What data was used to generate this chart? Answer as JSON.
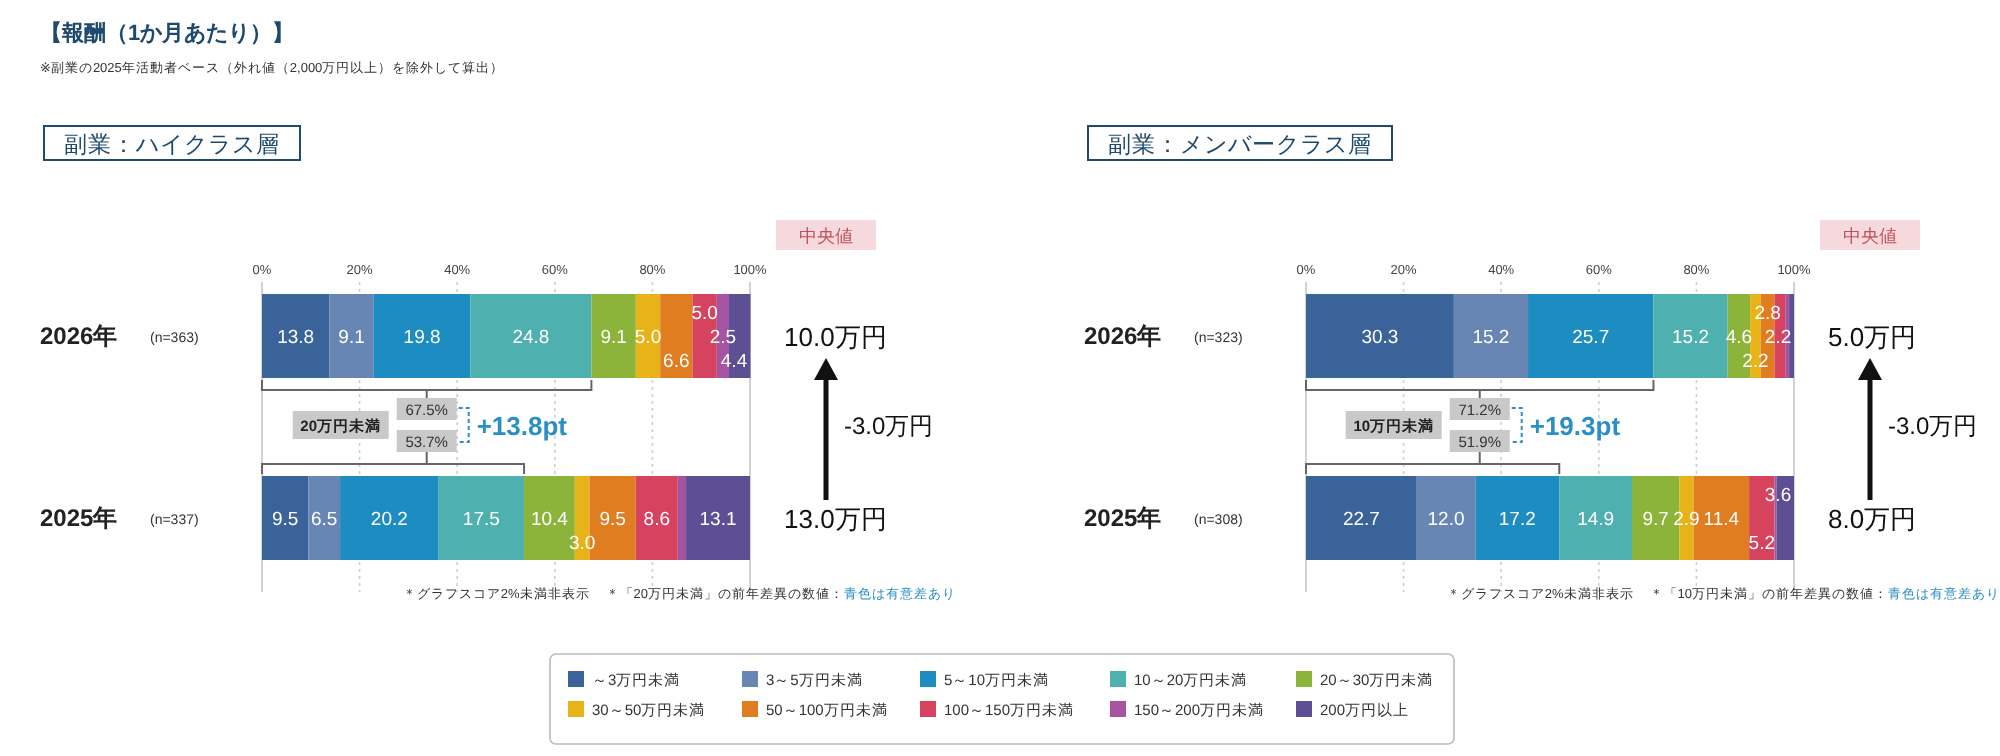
{
  "chart_data": [
    {
      "type": "bar",
      "orientation": "horizontal",
      "stacked": true,
      "title": "副業：ハイクラス層",
      "categories": [
        "2026年",
        "2025年"
      ],
      "xlim": [
        0,
        100
      ],
      "xticks": [
        {
          "value": 0,
          "label": "0%"
        },
        {
          "value": 20,
          "label": "20%"
        },
        {
          "value": 40,
          "label": "40%"
        },
        {
          "value": 60,
          "label": "60%"
        },
        {
          "value": 80,
          "label": "80%"
        },
        {
          "value": 100,
          "label": "100%"
        }
      ],
      "grid": "x",
      "legend": "bottom",
      "series": [
        {
          "name": "～3万円未満",
          "color": "#3a6499",
          "values": [
            13.8,
            9.5
          ],
          "value_labels": [
            "13.8",
            "9.5"
          ]
        },
        {
          "name": "3～5万円未満",
          "color": "#6786b4",
          "values": [
            9.1,
            6.5
          ],
          "value_labels": [
            "9.1",
            "6.5"
          ]
        },
        {
          "name": "5～10万円未満",
          "color": "#1d8cc0",
          "values": [
            19.8,
            20.2
          ],
          "value_labels": [
            "19.8",
            "20.2"
          ]
        },
        {
          "name": "10～20万円未満",
          "color": "#4fb0b0",
          "values": [
            24.8,
            17.5
          ],
          "value_labels": [
            "24.8",
            "17.5"
          ]
        },
        {
          "name": "20～30万円未満",
          "color": "#8db43a",
          "values": [
            9.1,
            10.4
          ],
          "value_labels": [
            "9.1",
            "10.4"
          ]
        },
        {
          "name": "30～50万円未満",
          "color": "#e8b318",
          "values": [
            5.0,
            3.0
          ],
          "value_labels": [
            "5.0",
            "3.0"
          ]
        },
        {
          "name": "50～100万円未満",
          "color": "#e07d20",
          "values": [
            6.6,
            9.5
          ],
          "value_labels": [
            "6.6",
            "9.5"
          ]
        },
        {
          "name": "100～150万円未満",
          "color": "#d5435e",
          "values": [
            5.0,
            8.6
          ],
          "value_labels": [
            "5.0",
            "8.6"
          ]
        },
        {
          "name": "150～200万円未満",
          "color": "#a454a0",
          "values": [
            2.5,
            1.7
          ],
          "value_labels": [
            "2.5",
            null
          ]
        },
        {
          "name": "200万円以上",
          "color": "#5c4f94",
          "values": [
            4.4,
            13.1
          ],
          "value_labels": [
            "4.4",
            "13.1"
          ]
        }
      ],
      "annotations": [
        "【報酬（1か月あたり）】",
        "※副業の2025年活動者ベース（外れ値（2,000万円以上）を除外して算出）",
        "中央値",
        "(n=363)",
        "(n=337)",
        "10.0万円",
        "13.0万円",
        "-3.0万円",
        "20万円未満",
        "67.5%",
        "53.7%",
        "+13.8pt",
        "＊グラフスコア2%未満非表示",
        "＊「20万円未満」の前年差異の数値：",
        "青色は有意差あり"
      ]
    },
    {
      "type": "bar",
      "orientation": "horizontal",
      "stacked": true,
      "title": "副業：メンバークラス層",
      "categories": [
        "2026年",
        "2025年"
      ],
      "xlim": [
        0,
        100
      ],
      "xticks": [
        {
          "value": 0,
          "label": "0%"
        },
        {
          "value": 20,
          "label": "20%"
        },
        {
          "value": 40,
          "label": "40%"
        },
        {
          "value": 60,
          "label": "60%"
        },
        {
          "value": 80,
          "label": "80%"
        },
        {
          "value": 100,
          "label": "100%"
        }
      ],
      "grid": "x",
      "series": [
        {
          "color": "#3a6499",
          "values": [
            30.3,
            22.7
          ],
          "value_labels": [
            "30.3",
            "22.7"
          ]
        },
        {
          "color": "#6786b4",
          "values": [
            15.2,
            12.0
          ],
          "value_labels": [
            "15.2",
            "12.0"
          ]
        },
        {
          "color": "#1d8cc0",
          "values": [
            25.7,
            17.2
          ],
          "value_labels": [
            "25.7",
            "17.2"
          ]
        },
        {
          "color": "#4fb0b0",
          "values": [
            15.2,
            14.9
          ],
          "value_labels": [
            "15.2",
            "14.9"
          ]
        },
        {
          "color": "#8db43a",
          "values": [
            4.6,
            9.7
          ],
          "value_labels": [
            "4.6",
            "9.7"
          ]
        },
        {
          "color": "#e8b318",
          "values": [
            2.2,
            2.9
          ],
          "value_labels": [
            "2.2",
            "2.9"
          ]
        },
        {
          "color": "#e07d20",
          "values": [
            2.8,
            11.4
          ],
          "value_labels": [
            "2.8",
            "11.4"
          ]
        },
        {
          "color": "#d5435e",
          "values": [
            2.2,
            5.2
          ],
          "value_labels": [
            "2.2",
            "5.2"
          ]
        },
        {
          "color": "#a454a0",
          "values": [
            0.8,
            0.4
          ],
          "value_labels": [
            null,
            null
          ]
        },
        {
          "color": "#5c4f94",
          "values": [
            1.0,
            3.6
          ],
          "value_labels": [
            null,
            "3.6"
          ]
        }
      ],
      "annotations": [
        "中央値",
        "(n=323)",
        "(n=308)",
        "5.0万円",
        "8.0万円",
        "-3.0万円",
        "10万円未満",
        "71.2%",
        "51.9%",
        "+19.3pt",
        "＊グラフスコア2%未満非表示",
        "＊「10万円未満」の前年差異の数値：",
        "青色は有意差あり"
      ]
    }
  ]
}
